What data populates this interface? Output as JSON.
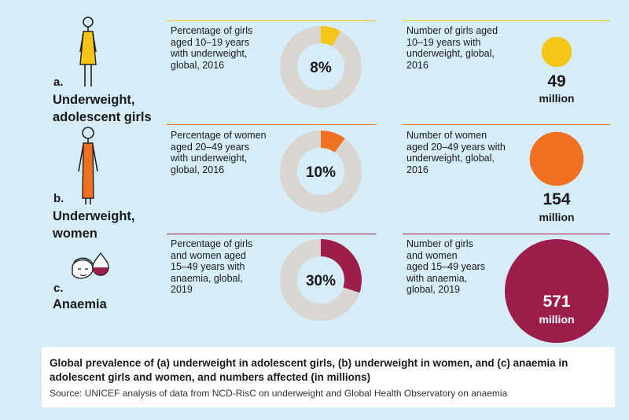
{
  "colors": {
    "background": "#d6edf7",
    "donut_track": "#d9d5d0",
    "row_a": "#f5c518",
    "row_b": "#f07022",
    "row_c": "#9c1c4a"
  },
  "rows": [
    {
      "letter": "a.",
      "title_line1": "Underweight,",
      "title_line2": "adolescent girls",
      "percent_desc": [
        "Percentage of girls",
        "aged 10–19 years",
        "with underweight,",
        "global, 2016"
      ],
      "count_desc": [
        "Number of  girls aged",
        "10–19 years with",
        "underweight, global,",
        "2016"
      ],
      "percent_label": "8%",
      "count_number": "49",
      "count_unit": "million",
      "icon": "girl-figure-icon"
    },
    {
      "letter": "b.",
      "title_line1": "Underweight,",
      "title_line2": "women",
      "percent_desc": [
        "Percentage of women",
        "aged 20–49 years",
        "with underweight,",
        "global, 2016"
      ],
      "count_desc": [
        "Number of women",
        "aged 20–49 years with",
        "underweight, global,",
        "2016"
      ],
      "percent_label": "10%",
      "count_number": "154",
      "count_unit": "million",
      "icon": "woman-figure-icon"
    },
    {
      "letter": "c.",
      "title_line1": "Anaemia",
      "title_line2": "",
      "percent_desc": [
        "Percentage of girls",
        "and women aged",
        "15–49 years with",
        "anaemia, global,",
        "2019"
      ],
      "count_desc": [
        "Number of girls",
        "and women",
        "aged 15–49 years",
        "with anaemia,",
        "global, 2019"
      ],
      "percent_label": "30%",
      "count_number": "571",
      "count_unit": "million",
      "icon": "anaemia-face-blood-drop-icon"
    }
  ],
  "caption": {
    "title": "Global prevalence of (a) underweight in adolescent girls, (b) underweight in women, and (c) anaemia in adolescent girls and women, and numbers affected (in millions)",
    "source": "Source: UNICEF analysis of data from NCD-RisC on underweight and Global Health Observatory on anaemia"
  },
  "chart_data": [
    {
      "type": "pie",
      "title": "Prevalence (%)",
      "categories": [
        "Underweight, adolescent girls (10–19), 2016",
        "Underweight, women (20–49), 2016",
        "Anaemia, girls and women (15–49), 2019"
      ],
      "values": [
        8,
        10,
        30
      ],
      "unit": "%"
    },
    {
      "type": "scatter",
      "title": "Numbers affected (in millions)",
      "categories": [
        "Underweight, adolescent girls",
        "Underweight, women",
        "Anaemia"
      ],
      "values": [
        49,
        154,
        571
      ],
      "unit": "million"
    }
  ]
}
